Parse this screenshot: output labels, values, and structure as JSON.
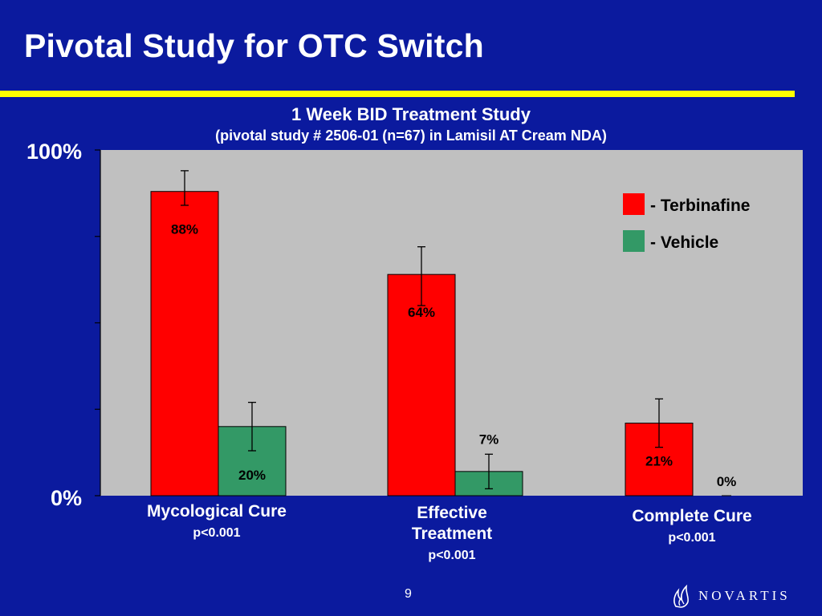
{
  "slide": {
    "title": "Pivotal Study for OTC Switch",
    "number": "9",
    "logo_text": "NOVARTIS",
    "logo_icon": "novartis-flame-icon"
  },
  "colors": {
    "background": "#0b1a9e",
    "rule": "#ffff00",
    "plot_bg": "#c0c0c0",
    "terbinafine": "#ff0000",
    "vehicle": "#339966"
  },
  "chart_data": {
    "type": "bar",
    "title": "1 Week BID Treatment Study",
    "subtitle": "(pivotal study # 2506-01 (n=67) in Lamisil AT Cream NDA)",
    "ylim": [
      0,
      100
    ],
    "y_tick_labels": [
      "0%",
      "100%"
    ],
    "grid": false,
    "legend_position": "top-right",
    "categories": [
      {
        "name": "Mycological Cure",
        "p_value": "p<0.001"
      },
      {
        "name": "Effective Treatment",
        "p_value": "p<0.001"
      },
      {
        "name": "Complete Cure",
        "p_value": "p<0.001"
      }
    ],
    "series": [
      {
        "name": "Terbinafine",
        "legend_label": "- Terbinafine",
        "values": [
          88,
          64,
          21
        ],
        "labels": [
          "88%",
          "64%",
          "21%"
        ],
        "error": [
          [
            84,
            94
          ],
          [
            55,
            72
          ],
          [
            14,
            28
          ]
        ]
      },
      {
        "name": "Vehicle",
        "legend_label": "- Vehicle",
        "values": [
          20,
          7,
          0
        ],
        "labels": [
          "20%",
          "7%",
          "0%"
        ],
        "error": [
          [
            13,
            27
          ],
          [
            2,
            12
          ],
          null
        ]
      }
    ]
  }
}
